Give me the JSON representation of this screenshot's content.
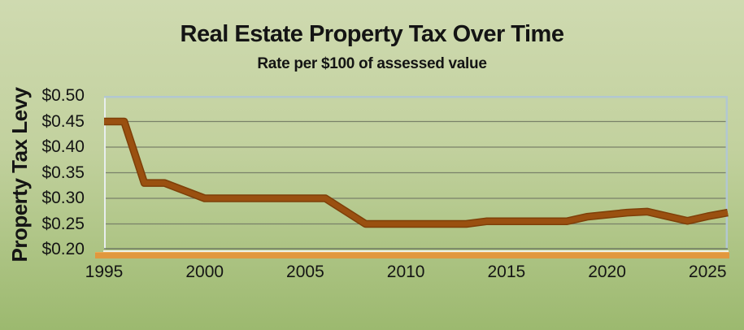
{
  "chart_data": {
    "type": "line",
    "title": "Real Estate Property Tax Over Time",
    "subtitle": "Rate per $100 of assessed value",
    "xlabel": "",
    "ylabel": "Property Tax Levy",
    "x": [
      1995,
      1996,
      1997,
      1998,
      1999,
      2000,
      2001,
      2002,
      2003,
      2004,
      2005,
      2006,
      2007,
      2008,
      2009,
      2010,
      2011,
      2012,
      2013,
      2014,
      2015,
      2016,
      2017,
      2018,
      2019,
      2020,
      2021,
      2022,
      2023,
      2024,
      2025,
      2026
    ],
    "values": [
      0.45,
      0.45,
      0.33,
      0.33,
      0.315,
      0.3,
      0.3,
      0.3,
      0.3,
      0.3,
      0.3,
      0.3,
      0.275,
      0.25,
      0.25,
      0.25,
      0.25,
      0.25,
      0.25,
      0.255,
      0.255,
      0.255,
      0.255,
      0.255,
      0.264,
      0.268,
      0.272,
      0.274,
      0.265,
      0.256,
      0.265,
      0.272
    ],
    "xlim": [
      1995,
      2026
    ],
    "ylim": [
      0.2,
      0.5
    ],
    "y_ticks": [
      {
        "label": "$0.50",
        "value": 0.5
      },
      {
        "label": "$0.45",
        "value": 0.45
      },
      {
        "label": "$0.40",
        "value": 0.4
      },
      {
        "label": "$0.35",
        "value": 0.35
      },
      {
        "label": "$0.30",
        "value": 0.3
      },
      {
        "label": "$0.25",
        "value": 0.25
      },
      {
        "label": "$0.20",
        "value": 0.2
      }
    ],
    "x_ticks": [
      {
        "label": "1995",
        "value": 1995
      },
      {
        "label": "2000",
        "value": 2000
      },
      {
        "label": "2005",
        "value": 2005
      },
      {
        "label": "2010",
        "value": 2010
      },
      {
        "label": "2015",
        "value": 2015
      },
      {
        "label": "2020",
        "value": 2020
      },
      {
        "label": "2025",
        "value": 2025
      }
    ],
    "grid": true,
    "legend": "none",
    "colors": {
      "line": "#9a5010",
      "line_shadow": "#7e3f08",
      "gridline": "#798169",
      "plot_border": "#b2c7d1",
      "plot_border_light": "#e8eeee",
      "axis_line": "#6e7a64",
      "x_axis_band": "#e1983e",
      "background_top": "#cfdab0",
      "background_bottom": "#9cb96f",
      "text": "#141414"
    }
  }
}
